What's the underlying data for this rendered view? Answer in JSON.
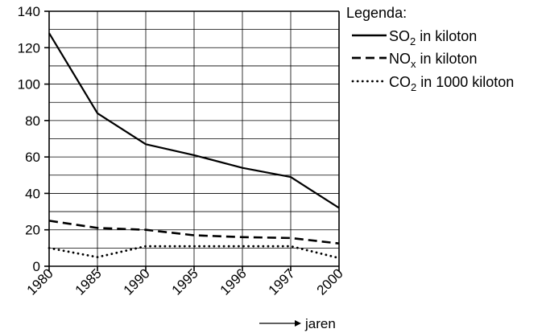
{
  "chart_data": {
    "type": "line",
    "categories": [
      "1980",
      "1985",
      "1990",
      "1995",
      "1996",
      "1997",
      "2000"
    ],
    "ylim": [
      0,
      140
    ],
    "yticks": [
      "0",
      "20",
      "40",
      "60",
      "80",
      "100",
      "120",
      "140"
    ],
    "grid": true,
    "xlabel": "jaren",
    "legend": {
      "title": "Legenda:",
      "placement": "right"
    },
    "series": [
      {
        "name_main": "SO",
        "name_sub": "2",
        "name_rest": " in kiloton",
        "dash": "solid",
        "values": [
          128,
          84,
          67,
          61,
          54,
          49,
          32
        ]
      },
      {
        "name_main": "NO",
        "name_sub": "x",
        "name_rest": " in kiloton",
        "dash": "dashed",
        "values": [
          25,
          21,
          20,
          17,
          16,
          15.5,
          12.5
        ]
      },
      {
        "name_main": "CO",
        "name_sub": "2",
        "name_rest": " in 1000 kiloton",
        "dash": "dotted",
        "values": [
          10,
          5,
          11,
          11,
          11,
          11,
          4.5
        ]
      }
    ]
  }
}
